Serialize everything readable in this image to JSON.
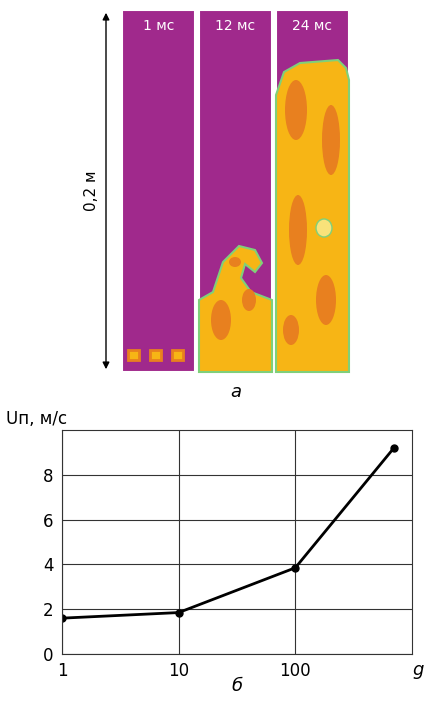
{
  "panel_a": {
    "caption": "а",
    "frames": [
      "1 мс",
      "12 мс",
      "24 мс"
    ],
    "scale_label": "0,2 м"
  },
  "chart_data": {
    "type": "line",
    "caption": "б",
    "x_label": "g",
    "y_label": "Uп, м/с",
    "x": [
      1,
      10,
      100,
      700
    ],
    "values": [
      1.6,
      1.85,
      3.85,
      9.2
    ],
    "log": "x",
    "xlim": [
      1,
      1000
    ],
    "xticks": [
      1,
      10,
      100
    ],
    "ylim": [
      0,
      10
    ],
    "yticks": [
      0,
      2,
      4,
      6,
      8
    ],
    "grid": true,
    "color": "#000000",
    "marker": "o",
    "line_style": "solid"
  }
}
